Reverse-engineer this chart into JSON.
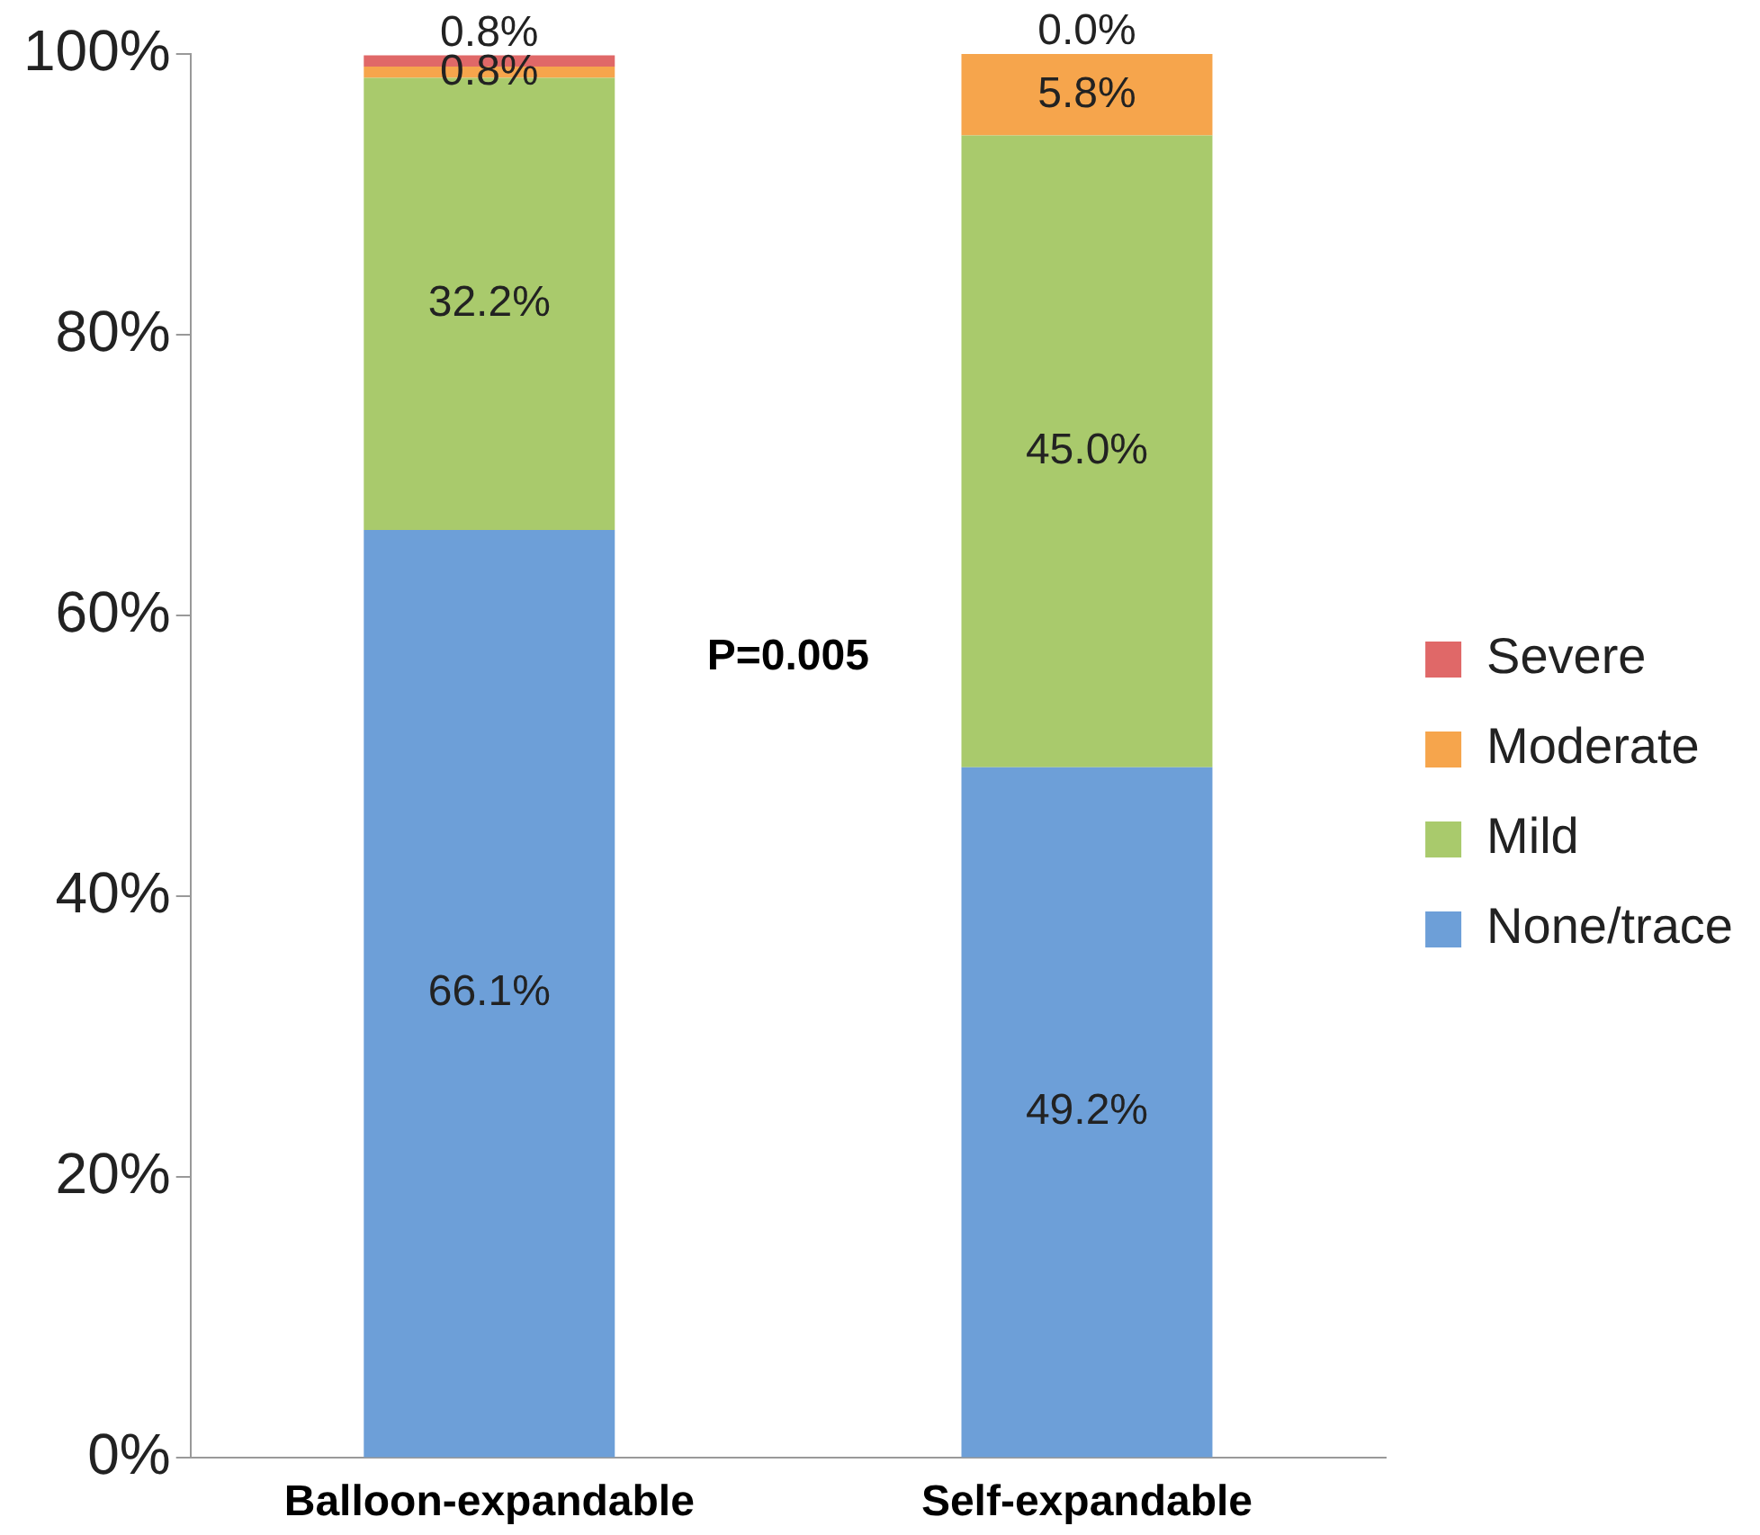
{
  "chart_data": {
    "type": "bar",
    "stacked": true,
    "categories": [
      "Balloon-expandable",
      "Self-expandable"
    ],
    "series": [
      {
        "name": "None/trace",
        "color": "#6d9fd8",
        "values": [
          66.1,
          49.2
        ],
        "value_labels": [
          "66.1%",
          "49.2%"
        ]
      },
      {
        "name": "Mild",
        "color": "#a9ca6c",
        "values": [
          32.2,
          45.0
        ],
        "value_labels": [
          "32.2%",
          "45.0%"
        ]
      },
      {
        "name": "Moderate",
        "color": "#f6a54c",
        "values": [
          0.8,
          5.8
        ],
        "value_labels": [
          "0.8%",
          "5.8%"
        ]
      },
      {
        "name": "Severe",
        "color": "#e06868",
        "values": [
          0.8,
          0.0
        ],
        "value_labels": [
          "0.8%",
          "0.0%"
        ]
      }
    ],
    "ylim": [
      0,
      100
    ],
    "yticks": [
      {
        "value": 0,
        "label": "0%"
      },
      {
        "value": 20,
        "label": "20%"
      },
      {
        "value": 40,
        "label": "40%"
      },
      {
        "value": 60,
        "label": "60%"
      },
      {
        "value": 80,
        "label": "80%"
      },
      {
        "value": 100,
        "label": "100%"
      }
    ],
    "grid": false,
    "legend": "right",
    "annotations": [
      "P=0.005"
    ]
  }
}
